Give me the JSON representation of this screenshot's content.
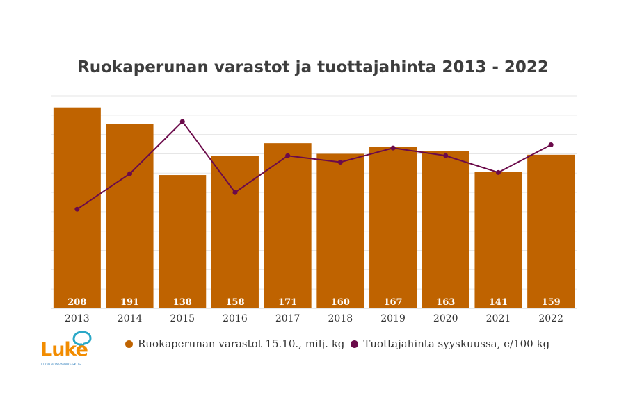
{
  "chart_data": {
    "type": "bar",
    "title": "Ruokaperunan varastot ja tuottajahinta 2013 - 2022",
    "categories": [
      "2013",
      "2014",
      "2015",
      "2016",
      "2017",
      "2018",
      "2019",
      "2020",
      "2021",
      "2022"
    ],
    "series": [
      {
        "name": "Ruokaperunan varastot 15.10., milj. kg",
        "type": "bar",
        "color": "#bf6300",
        "values": [
          208,
          191,
          138,
          158,
          171,
          160,
          167,
          163,
          141,
          159
        ]
      },
      {
        "name": "Tuottajahinta syyskuussa, e/100 kg",
        "type": "line",
        "color": "#6b0a4a",
        "values": [
          15.4,
          20.9,
          29.0,
          18.0,
          23.7,
          22.7,
          24.9,
          23.7,
          21.1,
          25.4
        ]
      }
    ],
    "ylim_bar": [
      0,
      220
    ],
    "ylim_line": [
      0,
      33
    ],
    "grid": true,
    "legend_position": "bottom"
  },
  "logo": {
    "text": "Luke",
    "subtext": "LUONNONVARAKESKUS",
    "accent": "#f28c00",
    "bubble_color": "#2aa8c7"
  }
}
